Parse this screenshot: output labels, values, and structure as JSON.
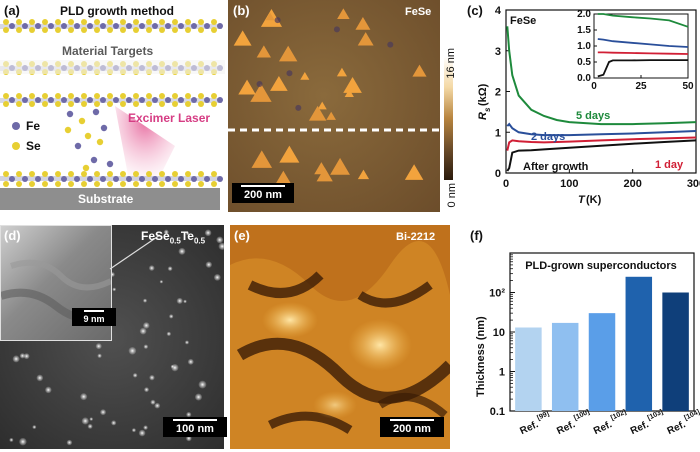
{
  "panels": {
    "a": {
      "label": "(a)",
      "title": "PLD growth method",
      "targets": "Material Targets",
      "laser": "Excimer Laser",
      "legend": [
        {
          "name": "Fe",
          "color": "#6e6aa8"
        },
        {
          "name": "Se",
          "color": "#e7cf33"
        }
      ],
      "substrate": "Substrate"
    },
    "b": {
      "label": "(b)",
      "sample": "FeSe",
      "scale": "200 nm",
      "cbar_max": "16 nm",
      "cbar_min": "0 nm"
    },
    "c": {
      "label": "(c)",
      "sample": "FeSe"
    },
    "d": {
      "label": "(d)",
      "sample": "FeSe0.5Te0.5",
      "sample_main": "FeSe",
      "sub1": "0.5",
      "mid": "Te",
      "sub2": "0.5",
      "scale": "100 nm",
      "inset_scale": "9 nm"
    },
    "e": {
      "label": "(e)",
      "sample": "Bi-2212",
      "scale": "200 nm"
    },
    "f": {
      "label": "(f)"
    }
  },
  "chart_data": [
    {
      "type": "line",
      "panel": "c",
      "title": "FeSe",
      "xlabel": "T (K)",
      "ylabel": "Rs (kΩ)",
      "xlim": [
        0,
        300
      ],
      "ylim": [
        0,
        4
      ],
      "xticks": [
        0,
        100,
        200,
        300
      ],
      "yticks": [
        0,
        1,
        2,
        3,
        4
      ],
      "series": [
        {
          "name": "5 days",
          "color": "#1e8a3c",
          "x": [
            2,
            5,
            10,
            20,
            40,
            60,
            80,
            100,
            150,
            200,
            250,
            300
          ],
          "y": [
            3.6,
            3.0,
            2.4,
            1.9,
            1.55,
            1.4,
            1.3,
            1.25,
            1.2,
            1.2,
            1.22,
            1.25
          ]
        },
        {
          "name": "2 days",
          "color": "#2a4f9a",
          "x": [
            2,
            5,
            10,
            20,
            40,
            60,
            100,
            150,
            200,
            250,
            300
          ],
          "y": [
            1.15,
            1.2,
            1.1,
            1.0,
            0.95,
            0.93,
            0.93,
            0.95,
            0.97,
            1.0,
            1.03
          ]
        },
        {
          "name": "1 day",
          "color": "#d11f35",
          "x": [
            2,
            5,
            10,
            20,
            40,
            60,
            100,
            150,
            200,
            250,
            300
          ],
          "y": [
            0.55,
            0.75,
            0.8,
            0.78,
            0.76,
            0.75,
            0.77,
            0.8,
            0.83,
            0.85,
            0.87
          ]
        },
        {
          "name": "After growth",
          "color": "#111111",
          "x": [
            2,
            5,
            8,
            10,
            20,
            40,
            60,
            100,
            150,
            200,
            250,
            300
          ],
          "y": [
            0.05,
            0.12,
            0.35,
            0.5,
            0.55,
            0.56,
            0.58,
            0.62,
            0.67,
            0.72,
            0.76,
            0.8
          ]
        }
      ],
      "inset": {
        "xlim": [
          0,
          50
        ],
        "ylim": [
          0,
          2.0
        ],
        "xticks": [
          0,
          25,
          50
        ],
        "yticks": [
          0,
          0.5,
          1.0,
          1.5,
          2.0
        ],
        "series": [
          {
            "name": "5 days",
            "color": "#1e8a3c",
            "x": [
              2,
              5,
              10,
              20,
              30,
              40,
              50
            ],
            "y": [
              2.1,
              2.0,
              1.95,
              1.9,
              1.86,
              1.8,
              1.6
            ]
          },
          {
            "name": "2 days",
            "color": "#2a4f9a",
            "x": [
              2,
              5,
              10,
              20,
              30,
              40,
              50
            ],
            "y": [
              1.22,
              1.2,
              1.15,
              1.1,
              1.05,
              1.0,
              0.97
            ]
          },
          {
            "name": "1 day",
            "color": "#d11f35",
            "x": [
              2,
              5,
              10,
              20,
              30,
              40,
              50
            ],
            "y": [
              0.8,
              0.8,
              0.79,
              0.78,
              0.77,
              0.76,
              0.75
            ]
          },
          {
            "name": "After growth",
            "color": "#111111",
            "x": [
              2,
              5,
              8,
              10,
              20,
              30,
              40,
              50
            ],
            "y": [
              0.05,
              0.1,
              0.5,
              0.55,
              0.55,
              0.56,
              0.56,
              0.56
            ]
          }
        ]
      }
    },
    {
      "type": "bar",
      "panel": "f",
      "title": "PLD-grown superconductors",
      "ylabel": "Thickness (nm)",
      "yscale": "log",
      "ylim": [
        0.1,
        1000
      ],
      "yticks": [
        "0.1",
        "1",
        "10",
        "10²"
      ],
      "categories": [
        "Ref. [99]",
        "Ref. [100]",
        "Ref. [102]",
        "Ref. [103]",
        "Ref. [104]"
      ],
      "values": [
        13,
        17,
        30,
        250,
        100
      ],
      "colors": [
        "#b3d3f0",
        "#8fbff0",
        "#5a9ee8",
        "#1f62ad",
        "#0f3f7a"
      ]
    }
  ]
}
